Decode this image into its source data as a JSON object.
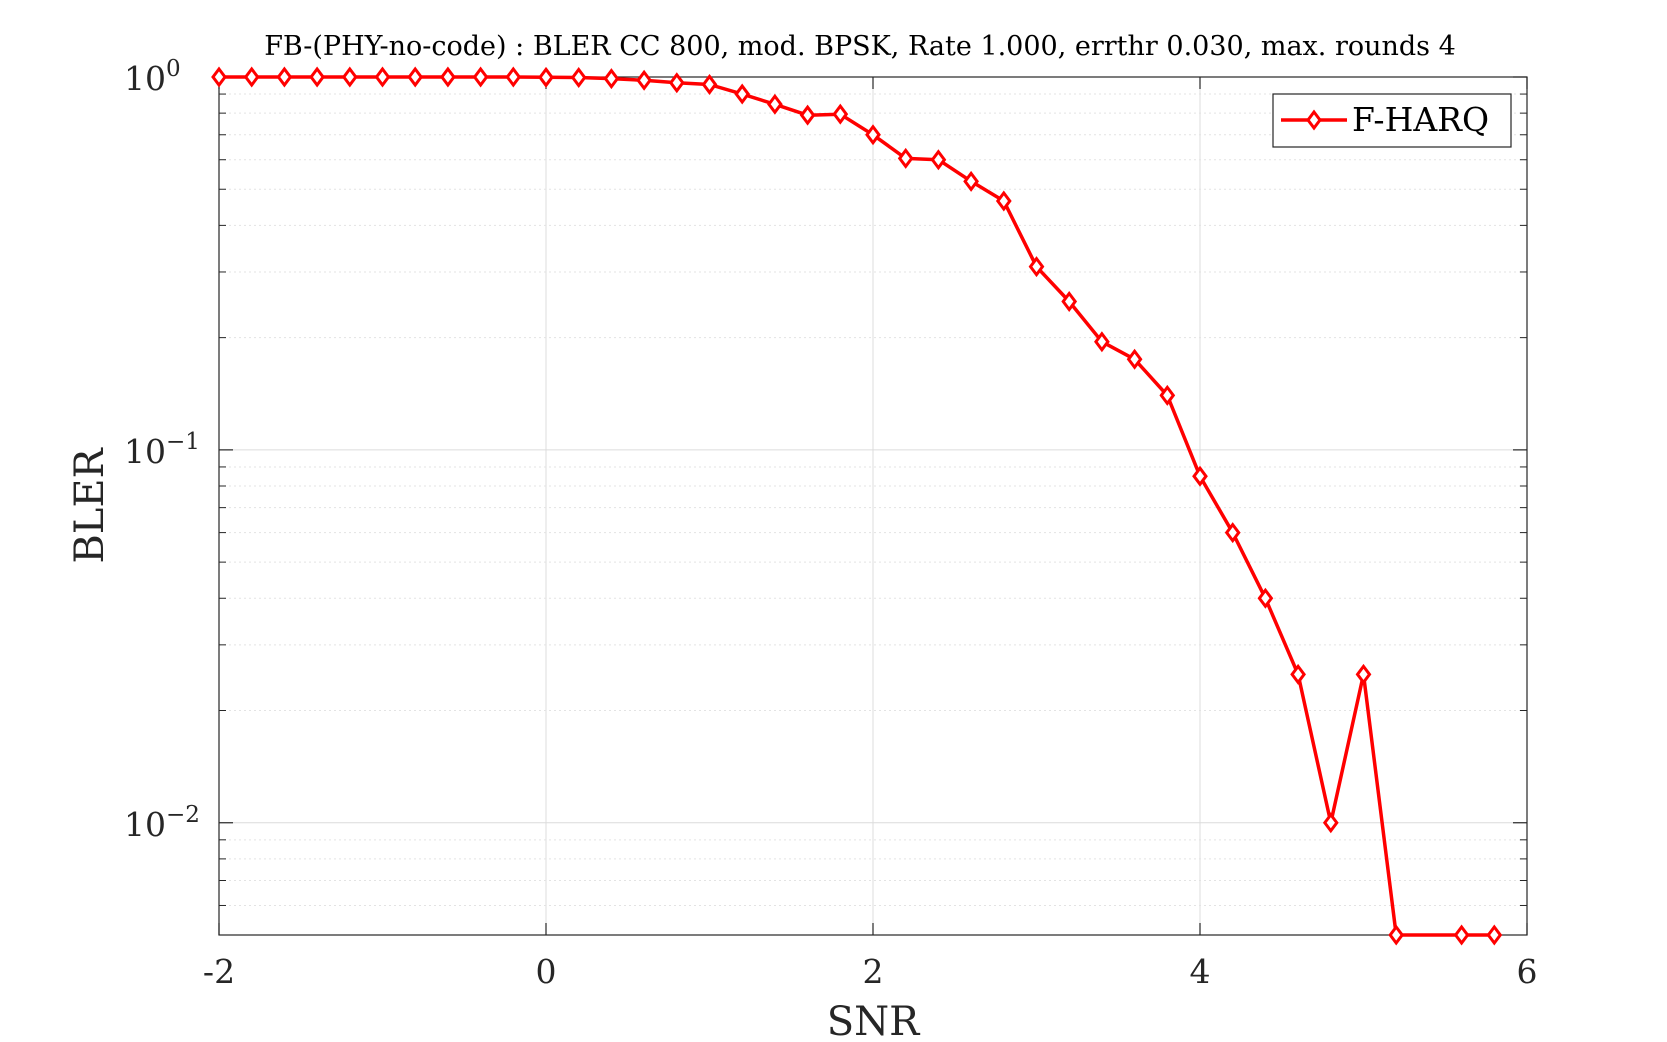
{
  "chart_data": {
    "type": "line",
    "title": "FB-(PHY-no-code) : BLER CC 800, mod. BPSK, Rate 1.000, errthr 0.030, max. rounds 4",
    "xlabel": "SNR",
    "ylabel": "BLER",
    "xlim": [
      -2,
      6
    ],
    "ylim": [
      0.005,
      1
    ],
    "yscale": "log",
    "grid": true,
    "legend_position": "top-right",
    "x_ticks": [
      "-2",
      "0",
      "2",
      "4",
      "6"
    ],
    "y_ticks": [
      {
        "value": 1,
        "base": "10",
        "exp": "0"
      },
      {
        "value": 0.1,
        "base": "10",
        "exp": "−1"
      },
      {
        "value": 0.01,
        "base": "10",
        "exp": "−2"
      }
    ],
    "series": [
      {
        "name": "F-HARQ",
        "color": "#ff0000",
        "marker": "diamond",
        "x": [
          -2.0,
          -1.8,
          -1.6,
          -1.4,
          -1.2,
          -1.0,
          -0.8,
          -0.6,
          -0.4,
          -0.2,
          0.0,
          0.2,
          0.4,
          0.6,
          0.8,
          1.0,
          1.2,
          1.4,
          1.6,
          1.8,
          2.0,
          2.2,
          2.4,
          2.6,
          2.8,
          3.0,
          3.2,
          3.4,
          3.6,
          3.8,
          4.0,
          4.2,
          4.4,
          4.6,
          4.8,
          5.0,
          5.2,
          5.6,
          5.8
        ],
        "y": [
          1.0,
          1.0,
          1.0,
          1.0,
          1.0,
          1.0,
          1.0,
          1.0,
          1.0,
          1.0,
          0.998,
          0.997,
          0.99,
          0.98,
          0.965,
          0.955,
          0.9,
          0.845,
          0.79,
          0.795,
          0.7,
          0.605,
          0.6,
          0.525,
          0.465,
          0.31,
          0.25,
          0.195,
          0.175,
          0.14,
          0.085,
          0.06,
          0.04,
          0.025,
          0.01,
          0.025,
          0.005,
          0.005,
          0.005
        ]
      }
    ]
  }
}
